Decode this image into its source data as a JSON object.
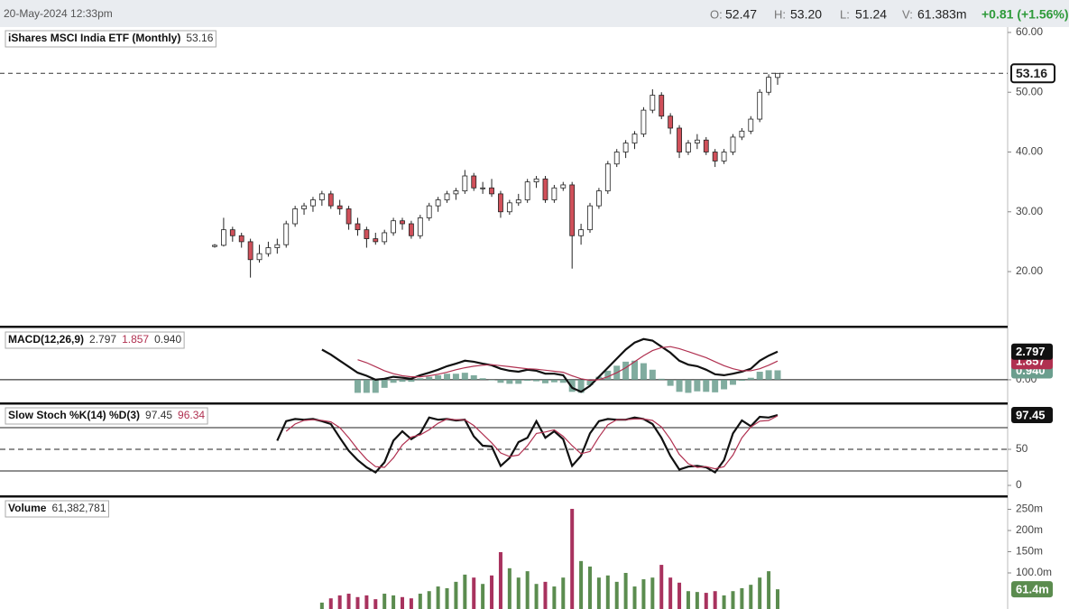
{
  "header": {
    "datetime": "20-May-2024 12:33pm",
    "open_label": "O:",
    "open": "52.47",
    "high_label": "H:",
    "high": "53.20",
    "low_label": "L:",
    "low": "51.24",
    "volume_label": "V:",
    "volume": "61.383m",
    "change": "+0.81 (+1.56%)"
  },
  "chart_data": [
    {
      "type": "candlestick",
      "title": "iShares MSCI India ETF (Monthly)",
      "title_value": "53.16",
      "last_label": "53.16",
      "up_color": "#ffffff",
      "down_color": "#d0505a",
      "candles": [
        [
          24.2,
          24.6,
          24,
          24.4
        ],
        [
          24.4,
          29,
          24.2,
          27
        ],
        [
          27,
          27.5,
          25,
          26
        ],
        [
          26,
          26.5,
          24,
          25
        ],
        [
          25,
          25.5,
          19,
          22
        ],
        [
          22,
          24.5,
          21.5,
          23
        ],
        [
          23,
          25,
          22.5,
          24
        ],
        [
          24,
          25.5,
          23,
          24.5
        ],
        [
          24.5,
          28.5,
          24,
          28
        ],
        [
          28,
          31,
          27.5,
          30.5
        ],
        [
          30.5,
          31.5,
          29.5,
          31
        ],
        [
          31,
          32.5,
          30,
          32
        ],
        [
          32,
          33.5,
          31,
          33
        ],
        [
          33,
          33.5,
          30.5,
          31
        ],
        [
          31,
          32,
          29.5,
          30.5
        ],
        [
          30.5,
          31,
          27,
          28
        ],
        [
          28,
          29,
          26,
          27
        ],
        [
          27,
          27.5,
          24,
          25.5
        ],
        [
          25.5,
          26.5,
          24.5,
          25
        ],
        [
          25,
          27,
          24.5,
          26.5
        ],
        [
          26.5,
          29,
          26,
          28.5
        ],
        [
          28.5,
          29,
          27,
          28
        ],
        [
          28,
          28.5,
          25.5,
          26
        ],
        [
          26,
          29.5,
          25.5,
          29
        ],
        [
          29,
          31.5,
          28.5,
          31
        ],
        [
          31,
          32.5,
          30,
          32
        ],
        [
          32,
          33.5,
          31.5,
          33
        ],
        [
          33,
          34,
          32,
          33.5
        ],
        [
          33.5,
          37,
          33,
          36
        ],
        [
          36,
          36.5,
          33.5,
          34
        ],
        [
          34,
          35,
          33,
          34
        ],
        [
          34,
          35.5,
          32.5,
          33
        ],
        [
          33,
          33.5,
          29,
          30
        ],
        [
          30,
          32,
          29.5,
          31.5
        ],
        [
          31.5,
          33,
          31,
          32
        ],
        [
          32,
          35.5,
          31.5,
          35
        ],
        [
          35,
          36,
          34,
          35.5
        ],
        [
          35.5,
          36,
          31.5,
          32
        ],
        [
          32,
          34.5,
          31.5,
          34
        ],
        [
          34,
          35,
          33.5,
          34.5
        ],
        [
          34.5,
          35,
          20.5,
          26
        ],
        [
          26,
          28,
          24.5,
          27
        ],
        [
          27,
          31.5,
          26.5,
          31
        ],
        [
          31,
          34,
          30.5,
          33.5
        ],
        [
          33.5,
          38.5,
          33,
          38
        ],
        [
          38,
          40.5,
          37.5,
          40
        ],
        [
          40,
          42,
          39,
          41.5
        ],
        [
          41.5,
          43.5,
          40.5,
          43
        ],
        [
          43,
          47.5,
          42.5,
          47
        ],
        [
          47,
          50.5,
          46.5,
          49.5
        ],
        [
          49.5,
          50,
          45.5,
          46
        ],
        [
          46,
          46.5,
          43,
          44
        ],
        [
          44,
          44.5,
          39,
          40
        ],
        [
          40,
          42,
          39.5,
          41.5
        ],
        [
          41.5,
          43,
          40.5,
          42
        ],
        [
          42,
          42.5,
          39.5,
          40
        ],
        [
          40,
          40.5,
          37.5,
          38.5
        ],
        [
          38.5,
          40.5,
          38,
          40
        ],
        [
          40,
          43,
          39.5,
          42.5
        ],
        [
          42.5,
          44,
          42,
          43.5
        ],
        [
          43.5,
          46,
          43,
          45.5
        ],
        [
          45.5,
          50.5,
          45,
          50
        ],
        [
          50,
          53,
          49.5,
          52.5
        ],
        [
          52.47,
          53.2,
          51.24,
          53.16
        ]
      ],
      "ylim": [
        10.8,
        60.9
      ],
      "yticks": [
        {
          "value": 20,
          "label": "20.00"
        },
        {
          "value": 30,
          "label": "30.00"
        },
        {
          "value": 40,
          "label": "40.00"
        },
        {
          "value": 50,
          "label": "50.00"
        },
        {
          "value": 60,
          "label": "60.00"
        }
      ]
    },
    {
      "type": "macd",
      "title": "MACD(12,26,9)",
      "series": [
        {
          "style": "line",
          "color": "#111111",
          "label": "2.797",
          "values": [
            null,
            null,
            null,
            null,
            null,
            null,
            null,
            null,
            null,
            null,
            null,
            null,
            3.0,
            2.5,
            1.9,
            1.3,
            0.7,
            0.4,
            0,
            0.1,
            0.3,
            0.2,
            0.1,
            0.45,
            0.7,
            1.0,
            1.35,
            1.6,
            1.9,
            1.8,
            1.6,
            1.45,
            1.1,
            0.9,
            0.8,
            1.0,
            0.9,
            0.6,
            0.6,
            0.45,
            -0.8,
            -1.2,
            -0.6,
            0.3,
            1.2,
            2.1,
            3.0,
            3.7,
            4.05,
            3.9,
            3.3,
            2.7,
            1.9,
            1.5,
            1.35,
            1.0,
            0.55,
            0.45,
            0.6,
            0.8,
            1.1,
            1.9,
            2.4,
            2.797
          ]
        },
        {
          "style": "line",
          "color": "#b03050",
          "label": "1.857",
          "values": [
            null,
            null,
            null,
            null,
            null,
            null,
            null,
            null,
            null,
            null,
            null,
            null,
            null,
            null,
            null,
            null,
            2.0,
            1.7,
            1.3,
            0.9,
            0.6,
            0.4,
            0.3,
            0.3,
            0.4,
            0.55,
            0.75,
            1.0,
            1.2,
            1.35,
            1.45,
            1.5,
            1.4,
            1.3,
            1.2,
            1.1,
            1.05,
            0.95,
            0.85,
            0.75,
            0.4,
            0.1,
            -0.05,
            0.0,
            0.3,
            0.7,
            1.2,
            1.8,
            2.4,
            2.9,
            3.2,
            3.3,
            3.1,
            2.8,
            2.5,
            2.2,
            1.8,
            1.4,
            1.1,
            0.9,
            0.9,
            1.1,
            1.45,
            1.857
          ]
        },
        {
          "style": "histogram",
          "color": "#6b9e8e",
          "label": "0.940",
          "values": [
            null,
            null,
            null,
            null,
            null,
            null,
            null,
            null,
            null,
            null,
            null,
            null,
            null,
            null,
            null,
            null,
            -1.3,
            -1.3,
            -1.3,
            -0.8,
            -0.3,
            -0.2,
            -0.2,
            0.15,
            0.3,
            0.45,
            0.6,
            0.6,
            0.7,
            0.45,
            0.15,
            -0.05,
            -0.3,
            -0.4,
            -0.4,
            -0.1,
            -0.15,
            -0.35,
            -0.25,
            -0.3,
            -1.2,
            -1.3,
            -0.55,
            0.3,
            0.9,
            1.4,
            1.8,
            1.9,
            1.65,
            1.0,
            0.1,
            -0.6,
            -1.2,
            -1.3,
            -1.15,
            -1.2,
            -1.25,
            -0.95,
            -0.5,
            -0.1,
            0.2,
            0.8,
            0.95,
            0.94
          ]
        }
      ],
      "ylim": [
        -2.25,
        5.2
      ],
      "yticks": [
        {
          "value": 0,
          "label": "0.00"
        }
      ]
    },
    {
      "type": "stochastic",
      "title": "Slow Stoch %K(14) %D(3)",
      "series": [
        {
          "color": "#111111",
          "label": "97.45",
          "values": [
            null,
            null,
            null,
            null,
            null,
            null,
            null,
            62,
            89,
            92,
            91,
            92,
            89,
            85,
            66,
            48,
            35,
            25,
            18,
            32,
            62,
            75,
            64,
            72,
            94,
            91,
            92,
            90,
            91,
            68,
            55,
            54,
            27,
            38,
            60,
            66,
            89,
            66,
            75,
            64,
            27,
            41,
            72,
            89,
            92,
            91,
            91,
            94,
            92,
            85,
            66,
            41,
            22,
            26,
            27,
            25,
            18,
            35,
            72,
            90,
            82,
            95,
            94,
            97.45
          ]
        },
        {
          "color": "#b03050",
          "label": "96.34",
          "values": [
            null,
            null,
            null,
            null,
            null,
            null,
            null,
            null,
            75,
            85,
            90,
            91,
            90,
            88,
            80,
            66,
            50,
            36,
            26,
            25,
            38,
            56,
            67,
            70,
            77,
            86,
            92,
            91,
            91,
            83,
            71,
            59,
            45,
            40,
            42,
            55,
            72,
            74,
            77,
            68,
            55,
            44,
            47,
            67,
            84,
            91,
            91,
            92,
            92,
            90,
            81,
            64,
            43,
            30,
            25,
            26,
            23,
            26,
            42,
            66,
            81,
            89,
            90,
            96.34
          ]
        }
      ],
      "levels": [
        20,
        50,
        80
      ],
      "ylim": [
        -15,
        113.75
      ],
      "yticks": [
        0,
        50
      ]
    },
    {
      "type": "volume",
      "title": "Volume",
      "title_value": "61,382,781",
      "last_label": "61.4m",
      "up_color": "#5b8c4f",
      "down_color": "#a8325e",
      "values": [
        null,
        null,
        null,
        null,
        null,
        null,
        null,
        null,
        null,
        null,
        null,
        null,
        30,
        40,
        47,
        51,
        43,
        47,
        38,
        51,
        47,
        43,
        40,
        51,
        57,
        68,
        64,
        79,
        96,
        89,
        74,
        94,
        149,
        111,
        89,
        104,
        74,
        79,
        68,
        89,
        251,
        128,
        115,
        89,
        94,
        79,
        100,
        68,
        85,
        89,
        119,
        89,
        77,
        57,
        55,
        53,
        57,
        47,
        57,
        64,
        72,
        89,
        104,
        61.382781
      ],
      "ylim": [
        14.9,
        278.7
      ],
      "yticks": [
        {
          "value": 100,
          "label": "100.0m"
        },
        {
          "value": 150,
          "label": "150m"
        },
        {
          "value": 200,
          "label": "200m"
        },
        {
          "value": 250,
          "label": "250m"
        }
      ]
    }
  ]
}
